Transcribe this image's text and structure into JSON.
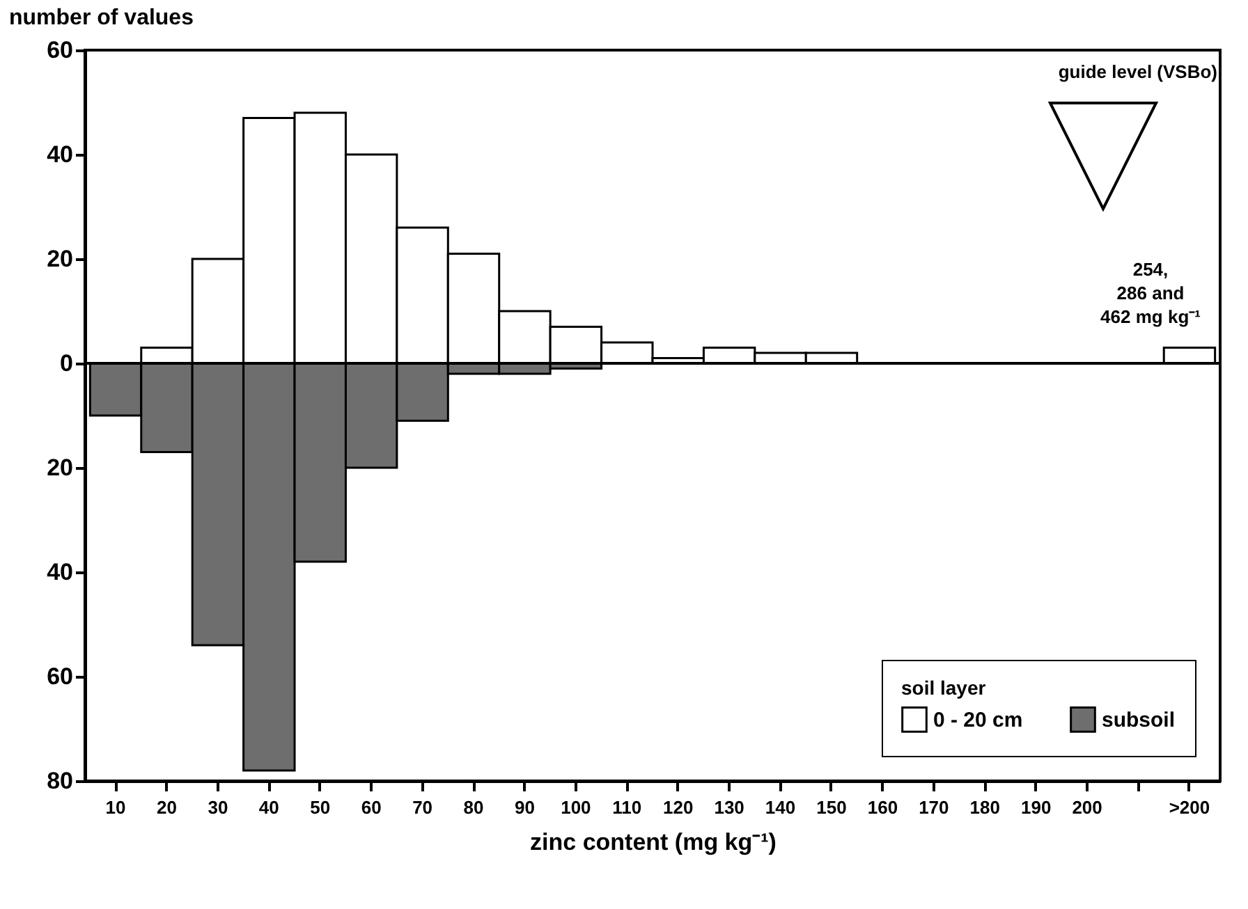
{
  "chart_data": {
    "type": "bar",
    "xlabel": "zinc content (mg kg⁻¹)",
    "ylabel": "number of values",
    "legend_title": "soil layer",
    "legend": "bottom right",
    "categories": [
      "10",
      "20",
      "30",
      "40",
      "50",
      "60",
      "70",
      "80",
      "90",
      "100",
      "110",
      "120",
      "130",
      "140",
      "150",
      "160",
      "170",
      "180",
      "190",
      "200",
      null,
      ">200"
    ],
    "series": [
      {
        "name": "0 - 20 cm",
        "color": "#ffffff",
        "values": [
          0,
          3,
          20,
          47,
          48,
          40,
          26,
          21,
          10,
          7,
          4,
          1,
          3,
          2,
          2,
          0,
          0,
          0,
          0,
          0,
          0,
          3
        ]
      },
      {
        "name": "subsoil",
        "color": "#6e6e6e",
        "values": [
          -10,
          -17,
          -54,
          -78,
          -38,
          -20,
          -11,
          -2,
          -2,
          -1,
          0,
          0,
          0,
          0,
          0,
          0,
          0,
          0,
          0,
          0,
          0,
          0
        ]
      }
    ],
    "ylim": [
      -80,
      60
    ],
    "yticks": [
      {
        "value": -80,
        "label": "80"
      },
      {
        "value": -60,
        "label": "60"
      },
      {
        "value": -40,
        "label": "40"
      },
      {
        "value": -20,
        "label": "20"
      },
      0,
      20,
      40,
      60
    ],
    "grid": false,
    "ref_lines": [
      {
        "axis": "y",
        "value": 0
      }
    ],
    "annotations": [
      "guide level (VSBo)",
      "254, 286 and 462 mg kg⁻¹"
    ]
  }
}
